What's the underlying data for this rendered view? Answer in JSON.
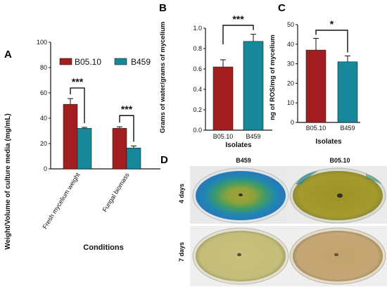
{
  "colors": {
    "B05.10": "#a11d1f",
    "B459": "#17879a",
    "axis": "#111111"
  },
  "panels": {
    "A": {
      "letter": "A",
      "chart_data": {
        "type": "bar",
        "categories": [
          "Fresh mycelium weight",
          "Fungal biomass"
        ],
        "series": [
          {
            "name": "B05.10",
            "values": [
              51,
              32
            ],
            "errors": [
              4.5,
              1.2
            ]
          },
          {
            "name": "B459",
            "values": [
              32,
              16.5
            ],
            "errors": [
              0.8,
              1.6
            ]
          }
        ],
        "xlabel": "Conditions",
        "ylabel": "Weight/Volume of culture media (mg/mL)",
        "ylim": [
          0,
          100
        ],
        "yticks": [
          "0",
          "20",
          "40",
          "60",
          "80",
          "100"
        ],
        "legend": "top",
        "significance": [
          "***",
          "***"
        ]
      }
    },
    "B": {
      "letter": "B",
      "chart_data": {
        "type": "bar",
        "categories": [
          "B05.10",
          "B459"
        ],
        "values": [
          0.62,
          0.87
        ],
        "errors": [
          0.07,
          0.07
        ],
        "xlabel": "Isolates",
        "ylabel": "Grams of water/grams of mycelium",
        "ylim": [
          0,
          1.0
        ],
        "yticks": [
          "0.0",
          "0.2",
          "0.4",
          "0.6",
          "0.8",
          "1.0"
        ],
        "significance": "***"
      }
    },
    "C": {
      "letter": "C",
      "chart_data": {
        "type": "bar",
        "categories": [
          "B05.10",
          "B459"
        ],
        "values": [
          37,
          31
        ],
        "errors": [
          6,
          3
        ],
        "xlabel": "Isolates",
        "ylabel": "ng of ROS/mg of mycelium",
        "ylim": [
          0,
          50
        ],
        "yticks": [
          "0",
          "10",
          "20",
          "30",
          "40",
          "50"
        ],
        "significance": "*"
      }
    },
    "D": {
      "letter": "D",
      "columns": [
        "B459",
        "B05.10"
      ],
      "rows": [
        "4 days",
        "7 days"
      ]
    }
  }
}
